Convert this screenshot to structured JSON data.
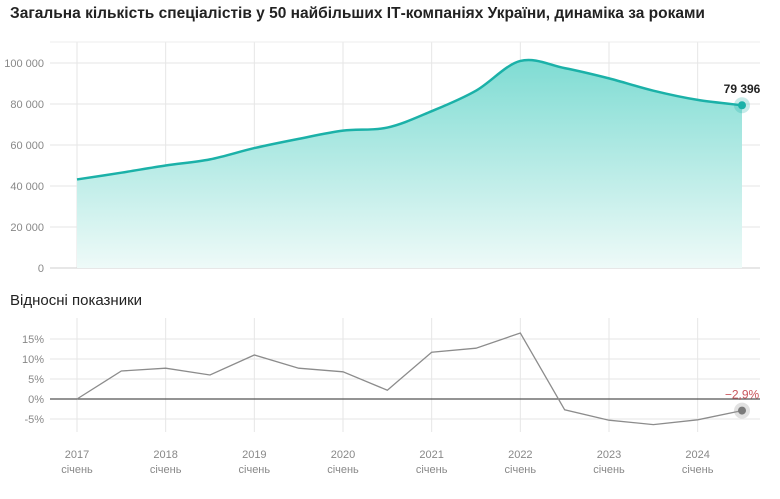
{
  "title": "Загальна кількість спеціалістів у 50 найбільших ІТ-компаніях України, динаміка за роками",
  "subtitle": "Відносні показники",
  "colors": {
    "area_line": "#1bb1a8",
    "area_fill_top": "#7fdcd3",
    "area_fill_bottom": "#eefaf8",
    "pct_line": "#8c8c8c",
    "neg_label": "#c9565d"
  },
  "chart_data": [
    {
      "type": "area",
      "title": "Загальна кількість спеціалістів у 50 найбільших ІТ-компаніях України, динаміка за роками",
      "x": [
        2017.0,
        2017.5,
        2018.0,
        2018.5,
        2019.0,
        2019.5,
        2020.0,
        2020.5,
        2021.0,
        2021.5,
        2022.0,
        2022.5,
        2023.0,
        2023.5,
        2024.0,
        2024.5
      ],
      "values": [
        43200,
        46500,
        50000,
        53000,
        58500,
        63000,
        67000,
        68500,
        76500,
        86500,
        101000,
        97500,
        92500,
        86500,
        82000,
        79396
      ],
      "ylim": [
        0,
        100000
      ],
      "yticks": [
        0,
        20000,
        40000,
        60000,
        80000,
        100000
      ],
      "ytick_labels": [
        "0",
        "20 000",
        "40 000",
        "60 000",
        "80 000",
        "100 000"
      ],
      "end_label": "79 396"
    },
    {
      "type": "line",
      "title": "Відносні показники",
      "x": [
        2017.0,
        2017.5,
        2018.0,
        2018.5,
        2019.0,
        2019.5,
        2020.0,
        2020.5,
        2021.0,
        2021.5,
        2022.0,
        2022.5,
        2023.0,
        2023.5,
        2024.0,
        2024.5
      ],
      "values": [
        0,
        7.0,
        7.7,
        6.0,
        11.0,
        7.7,
        6.8,
        2.2,
        11.7,
        12.7,
        16.5,
        -2.7,
        -5.3,
        -6.4,
        -5.2,
        -2.9
      ],
      "ylim": [
        -7,
        17
      ],
      "yticks": [
        -5,
        0,
        5,
        10,
        15
      ],
      "ytick_labels": [
        "-5%",
        "0%",
        "5%",
        "10%",
        "15%"
      ],
      "end_label": "−2,9%"
    }
  ],
  "x_axis": {
    "years": [
      2017,
      2018,
      2019,
      2020,
      2021,
      2022,
      2023,
      2024
    ],
    "year_labels": [
      "2017",
      "2018",
      "2019",
      "2020",
      "2021",
      "2022",
      "2023",
      "2024"
    ],
    "month_label": "січень"
  }
}
